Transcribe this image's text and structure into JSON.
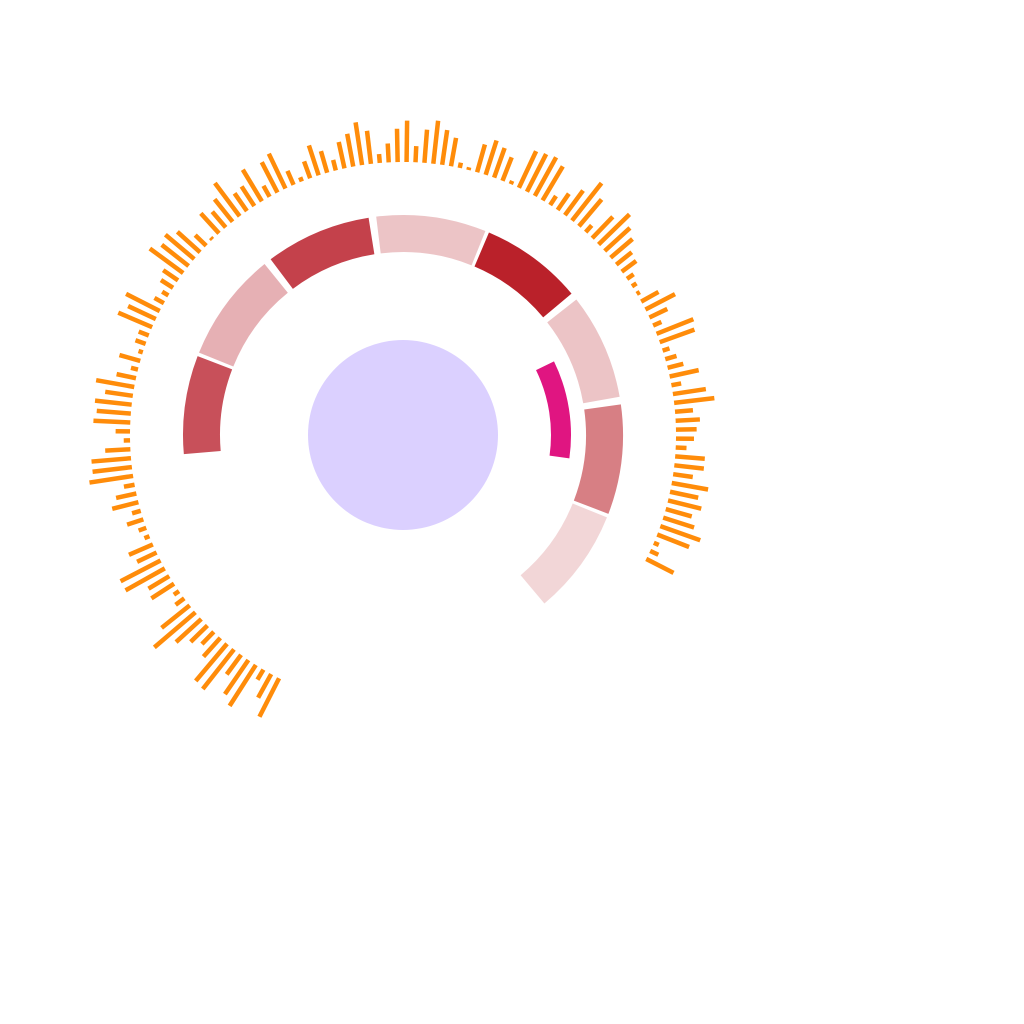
{
  "chart_data": {
    "type": "radial",
    "colors": {
      "center_circle": "#dbd0ff",
      "outer_bars": "#ff8c0a",
      "inner_arc": "#e01581"
    },
    "center_circle": {
      "fill": "#dbd0ff"
    },
    "ring_segments": [
      {
        "start_deg": 265,
        "end_deg": 291,
        "color": "#c8505a"
      },
      {
        "start_deg": 292,
        "end_deg": 321,
        "color": "#e6b0b4"
      },
      {
        "start_deg": 323,
        "end_deg": 351,
        "color": "#c4414b"
      },
      {
        "start_deg": 353,
        "end_deg": 382,
        "color": "#ecc4c6"
      },
      {
        "start_deg": 383,
        "end_deg": 410,
        "color": "#ba212a"
      },
      {
        "start_deg": 412,
        "end_deg": 440,
        "color": "#ecc4c6"
      },
      {
        "start_deg": 442,
        "end_deg": 471,
        "color": "#d77f84"
      },
      {
        "start_deg": 472,
        "end_deg": 500,
        "color": "#f2d6d7"
      }
    ],
    "inner_arc": {
      "start_deg": 64,
      "end_deg": 98,
      "color": "#e01581"
    },
    "outer_bars": {
      "start_deg": 207,
      "end_deg": 477,
      "color": "#ff8c0a",
      "values": [
        48,
        30,
        13,
        54,
        46,
        27,
        56,
        54,
        28,
        19,
        26,
        38,
        60,
        40,
        12,
        7,
        30,
        27,
        50,
        50,
        24,
        29,
        6,
        9,
        19,
        10,
        30,
        23,
        12,
        49,
        44,
        44,
        28,
        7,
        16,
        41,
        38,
        41,
        31,
        43,
        22,
        8,
        24,
        5,
        12,
        12,
        41,
        34,
        42,
        12,
        8,
        16,
        20,
        46,
        38,
        42,
        34,
        17,
        3,
        30,
        23,
        32,
        46,
        24,
        26,
        41,
        14,
        38,
        43,
        17,
        5,
        20,
        35,
        25,
        12,
        30,
        37,
        48,
        37,
        10,
        21,
        37,
        46,
        18,
        37,
        48,
        39,
        32,
        6,
        3,
        32,
        40,
        35,
        28,
        4,
        45,
        47,
        49,
        44,
        12,
        22,
        34,
        53,
        39,
        10,
        33,
        48,
        38,
        32,
        22,
        20,
        9,
        6,
        4,
        22,
        37,
        22,
        10,
        44,
        41,
        8,
        13,
        18,
        33,
        11,
        37,
        45,
        20,
        27,
        23,
        20,
        12,
        33,
        33,
        22,
        41,
        32,
        38,
        30,
        36,
        47,
        38,
        6,
        10,
        34
      ]
    }
  }
}
